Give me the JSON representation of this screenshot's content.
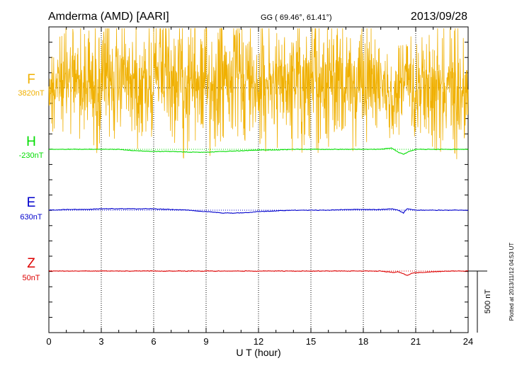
{
  "header": {
    "station": "Amderma (AMD)  [AARI]",
    "coords": "GG ( 69.46°,  61.41°)",
    "date": "2013/09/28"
  },
  "side_note": "Plotted at 2013/11/12 04:53 UT",
  "scale_label": "500 nT",
  "chart_data": {
    "type": "line",
    "xlabel": "U T (hour)",
    "xlim": [
      0,
      24
    ],
    "xticks": [
      0,
      3,
      6,
      9,
      12,
      15,
      18,
      21,
      24
    ],
    "series": [
      {
        "name": "F",
        "baseline": "3820nT",
        "color": "#f0b000",
        "level": [
          [
            0,
            0
          ],
          [
            0.5,
            -5
          ],
          [
            1,
            -15
          ],
          [
            2,
            -10
          ],
          [
            3,
            0
          ],
          [
            4,
            -20
          ],
          [
            5,
            -10
          ],
          [
            6,
            -15
          ],
          [
            7,
            -5
          ],
          [
            8,
            -10
          ],
          [
            9,
            -5
          ],
          [
            10,
            -10
          ],
          [
            11,
            -15
          ],
          [
            12,
            -10
          ],
          [
            13,
            -5
          ],
          [
            14,
            -10
          ],
          [
            15,
            -5
          ],
          [
            16,
            -10
          ],
          [
            17,
            0
          ],
          [
            18,
            -5
          ],
          [
            19,
            -10
          ],
          [
            19.6,
            20
          ],
          [
            20.3,
            -20
          ],
          [
            21,
            -10
          ],
          [
            22,
            -5
          ],
          [
            23,
            -5
          ],
          [
            24,
            0
          ]
        ],
        "amp": [
          [
            0,
            60
          ],
          [
            1,
            70
          ],
          [
            2,
            75
          ],
          [
            3,
            80
          ],
          [
            4,
            80
          ],
          [
            5,
            70
          ],
          [
            6,
            75
          ],
          [
            7,
            80
          ],
          [
            8,
            85
          ],
          [
            9,
            80
          ],
          [
            10,
            80
          ],
          [
            11,
            75
          ],
          [
            12,
            80
          ],
          [
            13,
            70
          ],
          [
            14,
            80
          ],
          [
            15,
            85
          ],
          [
            16,
            80
          ],
          [
            17,
            75
          ],
          [
            18,
            70
          ],
          [
            19,
            55
          ],
          [
            19.5,
            45
          ],
          [
            20.3,
            60
          ],
          [
            21,
            70
          ],
          [
            22,
            75
          ],
          [
            23,
            85
          ],
          [
            24,
            85
          ]
        ]
      },
      {
        "name": "H",
        "baseline": "-230nT",
        "color": "#00dd00",
        "trace": [
          [
            0,
            0
          ],
          [
            1,
            0
          ],
          [
            2,
            0
          ],
          [
            3,
            0
          ],
          [
            4,
            0
          ],
          [
            5,
            2
          ],
          [
            6,
            3
          ],
          [
            7,
            3
          ],
          [
            8,
            4
          ],
          [
            9,
            4
          ],
          [
            10,
            3
          ],
          [
            11,
            2
          ],
          [
            12,
            1
          ],
          [
            13,
            1
          ],
          [
            14,
            0
          ],
          [
            15,
            0
          ],
          [
            16,
            0
          ],
          [
            17,
            0
          ],
          [
            18,
            0
          ],
          [
            19,
            0
          ],
          [
            19.6,
            -2
          ],
          [
            20.0,
            4
          ],
          [
            20.3,
            7
          ],
          [
            20.6,
            3
          ],
          [
            21,
            0
          ],
          [
            22,
            0
          ],
          [
            23,
            0
          ],
          [
            24,
            0
          ]
        ]
      },
      {
        "name": "E",
        "baseline": "630nT",
        "color": "#0000cc",
        "trace": [
          [
            0,
            0
          ],
          [
            1,
            -1
          ],
          [
            2,
            -1
          ],
          [
            3,
            -2
          ],
          [
            4,
            -2
          ],
          [
            5,
            -2
          ],
          [
            6,
            -2
          ],
          [
            7,
            -1
          ],
          [
            8,
            0
          ],
          [
            9,
            2
          ],
          [
            10,
            4
          ],
          [
            11,
            4
          ],
          [
            12,
            2
          ],
          [
            13,
            1
          ],
          [
            14,
            0
          ],
          [
            15,
            0
          ],
          [
            16,
            0
          ],
          [
            17,
            -1
          ],
          [
            18,
            -1
          ],
          [
            19,
            -1
          ],
          [
            19.6,
            -2
          ],
          [
            20.0,
            0
          ],
          [
            20.3,
            4
          ],
          [
            20.5,
            -2
          ],
          [
            21,
            0
          ],
          [
            22,
            0
          ],
          [
            23,
            0
          ],
          [
            24,
            0
          ]
        ]
      },
      {
        "name": "Z",
        "baseline": "50nT",
        "color": "#dd0000",
        "trace": [
          [
            0,
            0
          ],
          [
            1,
            0
          ],
          [
            2,
            0
          ],
          [
            3,
            0
          ],
          [
            4,
            0
          ],
          [
            5,
            0
          ],
          [
            6,
            0
          ],
          [
            7,
            0
          ],
          [
            8,
            0
          ],
          [
            9,
            0
          ],
          [
            10,
            0
          ],
          [
            11,
            0
          ],
          [
            12,
            0
          ],
          [
            13,
            0
          ],
          [
            14,
            0
          ],
          [
            15,
            0
          ],
          [
            16,
            0
          ],
          [
            17,
            0
          ],
          [
            18,
            0
          ],
          [
            19,
            0
          ],
          [
            19.3,
            1
          ],
          [
            19.7,
            2
          ],
          [
            20.0,
            1
          ],
          [
            20.3,
            4
          ],
          [
            20.5,
            6
          ],
          [
            20.8,
            3
          ],
          [
            21.3,
            2
          ],
          [
            22,
            1
          ],
          [
            23,
            0
          ],
          [
            24,
            0
          ]
        ]
      }
    ]
  }
}
